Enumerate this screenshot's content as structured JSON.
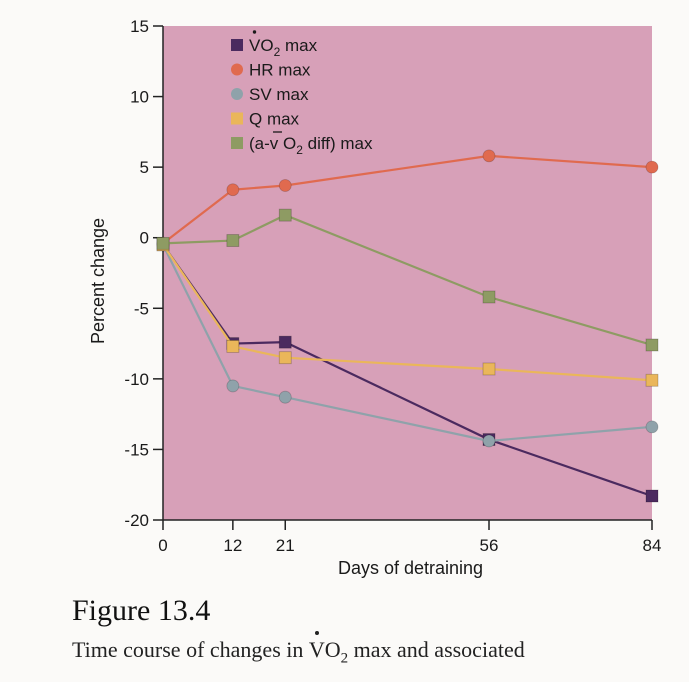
{
  "colors": {
    "plot_bg": "#d7a0b8",
    "vo2": "#4b2a5f",
    "hr": "#e06a4f",
    "sv": "#8fa2aa",
    "q": "#eab65a",
    "avo2": "#8e9b63"
  },
  "chart_data": {
    "type": "line",
    "xlabel": "Days of detraining",
    "ylabel": "Percent change",
    "x": [
      0,
      12,
      21,
      56,
      84
    ],
    "xlim": [
      0,
      84
    ],
    "ylim": [
      -20,
      15
    ],
    "xticks": [
      "0",
      "12",
      "21",
      "56",
      "84"
    ],
    "yticks": [
      "15",
      "10",
      "5",
      "0",
      "-5",
      "-10",
      "-15",
      "-20"
    ],
    "grid": false,
    "legend_position": "top-left",
    "series": [
      {
        "key": "vo2",
        "name_pre": "V",
        "name_o": "O",
        "name_sub": "2",
        "name_post": " max",
        "marker": "square",
        "color": "#4b2a5f",
        "points": [
          [
            0,
            -0.5
          ],
          [
            12,
            -7.5
          ],
          [
            21,
            -7.4
          ],
          [
            56,
            -14.3
          ],
          [
            84,
            -18.3
          ]
        ]
      },
      {
        "key": "hr",
        "name": "HR max",
        "marker": "circle",
        "color": "#e06a4f",
        "points": [
          [
            0,
            -0.4
          ],
          [
            12,
            3.4
          ],
          [
            21,
            3.7
          ],
          [
            56,
            5.8
          ],
          [
            84,
            5.0
          ]
        ]
      },
      {
        "key": "sv",
        "name": "SV max",
        "marker": "circle",
        "color": "#8fa2aa",
        "points": [
          [
            0,
            -0.5
          ],
          [
            12,
            -10.5
          ],
          [
            21,
            -11.3
          ],
          [
            56,
            -14.4
          ],
          [
            84,
            -13.4
          ]
        ]
      },
      {
        "key": "q",
        "name": "Q max",
        "marker": "square",
        "color": "#eab65a",
        "points": [
          [
            0,
            -0.5
          ],
          [
            12,
            -7.7
          ],
          [
            21,
            -8.5
          ],
          [
            56,
            -9.3
          ],
          [
            84,
            -10.1
          ]
        ]
      },
      {
        "key": "avo2",
        "name_pre": "(a-",
        "name_v": "v",
        "name_mid": " O",
        "name_sub": "2",
        "name_post": " diff) max",
        "marker": "square",
        "color": "#8e9b63",
        "points": [
          [
            0,
            -0.4
          ],
          [
            12,
            -0.2
          ],
          [
            21,
            1.6
          ],
          [
            56,
            -4.2
          ],
          [
            84,
            -7.6
          ]
        ]
      }
    ]
  },
  "caption": {
    "figure_label": "Figure 13.4",
    "line_pre": "Time course of changes in ",
    "line_v": "V",
    "line_o": "O",
    "line_sub": "2",
    "line_post": " max and associated"
  }
}
